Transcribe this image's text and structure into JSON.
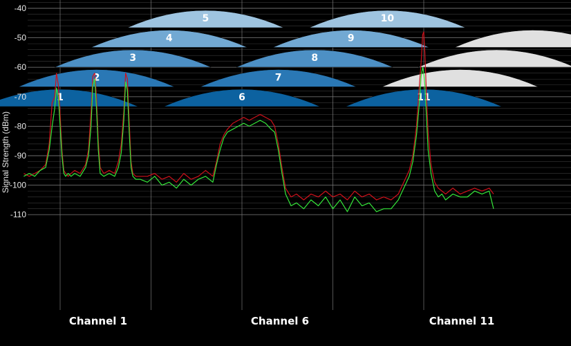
{
  "chart_data": {
    "type": "line",
    "ylabel": "Signal Strength (dBm)",
    "xlabel": "",
    "ylim": [
      -111,
      -38
    ],
    "y_ticks": [
      -40,
      -50,
      -60,
      -70,
      -80,
      -90,
      -100,
      -110
    ],
    "x_labels": [
      "Channel 1",
      "Channel 6",
      "Channel 11"
    ],
    "grid": true,
    "colors": {
      "background": "#000000",
      "grid": "#5a5a5a",
      "series_red": "#d0111b",
      "series_green": "#35e83a",
      "series_white": "#d8d8d8",
      "arc_row1": "#0c62a0",
      "arc_row2": "#2a78b5",
      "arc_row3": "#4d90c5",
      "arc_row4": "#72a9d3",
      "arc_row5": "#9ec4e0",
      "arc_unused": "#e0e0e0"
    },
    "channel_arcs": [
      {
        "channel": "1",
        "center": 1,
        "row": 1
      },
      {
        "channel": "2",
        "center": 2,
        "row": 2
      },
      {
        "channel": "3",
        "center": 3,
        "row": 3
      },
      {
        "channel": "4",
        "center": 4,
        "row": 4
      },
      {
        "channel": "5",
        "center": 5,
        "row": 5
      },
      {
        "channel": "6",
        "center": 6,
        "row": 1
      },
      {
        "channel": "7",
        "center": 7,
        "row": 2
      },
      {
        "channel": "8",
        "center": 8,
        "row": 3
      },
      {
        "channel": "9",
        "center": 9,
        "row": 4
      },
      {
        "channel": "10",
        "center": 10,
        "row": 5
      },
      {
        "channel": "11",
        "center": 11,
        "row": 1
      },
      {
        "channel": "",
        "center": 12,
        "row": 2
      },
      {
        "channel": "",
        "center": 13,
        "row": 3
      },
      {
        "channel": "",
        "center": 14,
        "row": 4
      }
    ],
    "series": [
      {
        "color": "red",
        "x": [
          0.0,
          0.15,
          0.3,
          0.45,
          0.6,
          0.7,
          0.78,
          0.85,
          0.9,
          0.95,
          1.0,
          1.05,
          1.1,
          1.15,
          1.22,
          1.3,
          1.4,
          1.55,
          1.7,
          1.78,
          1.85,
          1.9,
          1.95,
          2.0,
          2.05,
          2.1,
          2.2,
          2.35,
          2.5,
          2.6,
          2.68,
          2.75,
          2.8,
          2.85,
          2.9,
          2.95,
          3.0,
          3.08,
          3.2,
          3.4,
          3.6,
          3.8,
          4.0,
          4.2,
          4.4,
          4.6,
          4.8,
          5.0,
          5.2,
          5.3,
          5.4,
          5.5,
          5.6,
          5.75,
          5.9,
          6.05,
          6.2,
          6.35,
          6.5,
          6.65,
          6.8,
          6.9,
          7.0,
          7.1,
          7.2,
          7.35,
          7.5,
          7.7,
          7.9,
          8.1,
          8.3,
          8.5,
          8.7,
          8.9,
          9.1,
          9.3,
          9.5,
          9.7,
          9.9,
          10.1,
          10.3,
          10.45,
          10.6,
          10.7,
          10.8,
          10.88,
          10.93,
          10.97,
          11.0,
          11.03,
          11.07,
          11.12,
          11.2,
          11.3,
          11.4,
          11.5,
          11.6,
          11.8,
          12.0,
          12.2,
          12.4,
          12.6,
          12.8,
          12.92
        ],
        "y": [
          -96,
          -97,
          -96,
          -95,
          -93,
          -86,
          -72,
          -70,
          -62,
          -66,
          -76,
          -88,
          -95,
          -96,
          -97,
          -96,
          -95,
          -96,
          -93,
          -88,
          -75,
          -63,
          -62,
          -70,
          -85,
          -94,
          -96,
          -95,
          -96,
          -92,
          -86,
          -75,
          -62,
          -64,
          -78,
          -92,
          -96,
          -97,
          -97,
          -97,
          -96,
          -98,
          -97,
          -99,
          -96,
          -98,
          -97,
          -95,
          -97,
          -92,
          -86,
          -83,
          -81,
          -79,
          -78,
          -77,
          -78,
          -77,
          -76,
          -77,
          -78,
          -80,
          -86,
          -94,
          -101,
          -104,
          -103,
          -105,
          -103,
          -104,
          -102,
          -104,
          -103,
          -105,
          -102,
          -104,
          -103,
          -105,
          -104,
          -105,
          -103,
          -99,
          -95,
          -90,
          -80,
          -66,
          -58,
          -49,
          -48,
          -55,
          -68,
          -82,
          -93,
          -99,
          -101,
          -102,
          -103,
          -101,
          -103,
          -102,
          -101,
          -102,
          -101,
          -103
        ]
      },
      {
        "color": "green",
        "x": [
          0.0,
          0.15,
          0.3,
          0.45,
          0.6,
          0.7,
          0.78,
          0.85,
          0.9,
          0.95,
          1.0,
          1.05,
          1.1,
          1.15,
          1.22,
          1.3,
          1.4,
          1.55,
          1.7,
          1.78,
          1.85,
          1.9,
          1.95,
          2.0,
          2.05,
          2.1,
          2.2,
          2.35,
          2.5,
          2.6,
          2.68,
          2.75,
          2.8,
          2.85,
          2.9,
          2.95,
          3.0,
          3.08,
          3.2,
          3.4,
          3.6,
          3.8,
          4.0,
          4.2,
          4.4,
          4.6,
          4.8,
          5.0,
          5.2,
          5.3,
          5.4,
          5.5,
          5.6,
          5.75,
          5.9,
          6.05,
          6.2,
          6.35,
          6.5,
          6.65,
          6.8,
          6.9,
          7.0,
          7.1,
          7.2,
          7.35,
          7.5,
          7.7,
          7.9,
          8.1,
          8.3,
          8.5,
          8.7,
          8.9,
          9.1,
          9.3,
          9.5,
          9.7,
          9.9,
          10.1,
          10.3,
          10.45,
          10.6,
          10.7,
          10.8,
          10.88,
          10.93,
          10.97,
          11.0,
          11.03,
          11.07,
          11.12,
          11.2,
          11.3,
          11.4,
          11.5,
          11.6,
          11.8,
          12.0,
          12.2,
          12.4,
          12.6,
          12.8,
          12.92
        ],
        "y": [
          -97,
          -96,
          -97,
          -95,
          -94,
          -88,
          -80,
          -74,
          -67,
          -70,
          -80,
          -90,
          -96,
          -97,
          -96,
          -97,
          -96,
          -97,
          -94,
          -90,
          -80,
          -66,
          -64,
          -74,
          -88,
          -96,
          -97,
          -96,
          -97,
          -94,
          -89,
          -78,
          -65,
          -68,
          -82,
          -94,
          -97,
          -98,
          -98,
          -99,
          -97,
          -100,
          -99,
          -101,
          -98,
          -100,
          -98,
          -97,
          -99,
          -93,
          -88,
          -84,
          -82,
          -81,
          -80,
          -79,
          -80,
          -79,
          -78,
          -79,
          -81,
          -82,
          -88,
          -96,
          -103,
          -107,
          -106,
          -108,
          -105,
          -107,
          -104,
          -108,
          -105,
          -109,
          -104,
          -107,
          -106,
          -109,
          -108,
          -108,
          -105,
          -101,
          -97,
          -92,
          -83,
          -72,
          -63,
          -60,
          -62,
          -66,
          -76,
          -88,
          -96,
          -102,
          -104,
          -103,
          -105,
          -103,
          -104,
          -104,
          -102,
          -103,
          -102,
          -108
        ]
      }
    ]
  }
}
